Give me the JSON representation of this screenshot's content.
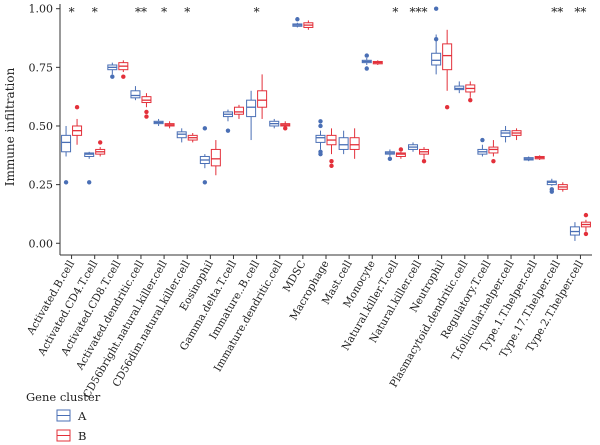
{
  "chart_data": {
    "type": "box",
    "ylabel": "Immune infiltration",
    "ylim": [
      -0.05,
      1.02
    ],
    "yticks": [
      0.0,
      0.25,
      0.5,
      0.75,
      1.0
    ],
    "ytick_labels": [
      "0.00",
      "0.25",
      "0.50",
      "0.75",
      "1.00"
    ],
    "categories": [
      "Activated.B.cell",
      "Activated.CD4.T.cell",
      "Activated.CD8.T.cell",
      "Activated.dendritic.cell",
      "CD56bright.natural.killer.cell",
      "CD56dim.natural.killer.cell",
      "Eosinophil",
      "Gamma.delta.T.cell",
      "Immature..B.cell",
      "Immature.dendritic.cell",
      "MDSC",
      "Macrophage",
      "Mast.cell",
      "Monocyte",
      "Natural.killer.T.cell",
      "Natural.killer.cell",
      "Neutrophil",
      "Plasmacytoid.dendritic.cell",
      "Regulatory.T.cell",
      "T.follicular.helper.cell",
      "Type.1.T.helper.cell",
      "Type.17.T.helper.cell",
      "Type.2.T.helper.cell"
    ],
    "significance": [
      "*",
      "*",
      "",
      "**",
      "*",
      "*",
      "",
      "",
      "*",
      "",
      "",
      "",
      "",
      "",
      "*",
      "***",
      "",
      "",
      "",
      "",
      "",
      "**",
      "**"
    ],
    "legend": {
      "title": "Gene cluster",
      "placement": "bottom-left"
    },
    "series": [
      {
        "name": "A",
        "color": "#4a6fb5",
        "boxes": [
          {
            "min": 0.37,
            "q1": 0.39,
            "median": 0.43,
            "q3": 0.46,
            "max": 0.5,
            "outliers": [
              0.26
            ]
          },
          {
            "min": 0.36,
            "q1": 0.37,
            "median": 0.38,
            "q3": 0.385,
            "max": 0.39,
            "outliers": [
              0.26
            ]
          },
          {
            "min": 0.72,
            "q1": 0.74,
            "median": 0.75,
            "q3": 0.76,
            "max": 0.77,
            "outliers": [
              0.71
            ]
          },
          {
            "min": 0.61,
            "q1": 0.62,
            "median": 0.63,
            "q3": 0.65,
            "max": 0.67,
            "outliers": []
          },
          {
            "min": 0.5,
            "q1": 0.51,
            "median": 0.515,
            "q3": 0.52,
            "max": 0.53,
            "outliers": []
          },
          {
            "min": 0.43,
            "q1": 0.45,
            "median": 0.465,
            "q3": 0.475,
            "max": 0.49,
            "outliers": []
          },
          {
            "min": 0.32,
            "q1": 0.34,
            "median": 0.355,
            "q3": 0.37,
            "max": 0.38,
            "outliers": [
              0.49,
              0.26
            ]
          },
          {
            "min": 0.52,
            "q1": 0.54,
            "median": 0.55,
            "q3": 0.56,
            "max": 0.57,
            "outliers": [
              0.48
            ]
          },
          {
            "min": 0.44,
            "q1": 0.54,
            "median": 0.58,
            "q3": 0.61,
            "max": 0.65,
            "outliers": []
          },
          {
            "min": 0.49,
            "q1": 0.5,
            "median": 0.51,
            "q3": 0.52,
            "max": 0.53,
            "outliers": []
          },
          {
            "min": 0.92,
            "q1": 0.925,
            "median": 0.93,
            "q3": 0.935,
            "max": 0.94,
            "outliers": [
              0.955
            ]
          },
          {
            "min": 0.4,
            "q1": 0.43,
            "median": 0.45,
            "q3": 0.46,
            "max": 0.48,
            "outliers": [
              0.5,
              0.52,
              0.39,
              0.38
            ]
          },
          {
            "min": 0.38,
            "q1": 0.4,
            "median": 0.42,
            "q3": 0.45,
            "max": 0.48,
            "outliers": []
          },
          {
            "min": 0.76,
            "q1": 0.77,
            "median": 0.775,
            "q3": 0.78,
            "max": 0.79,
            "outliers": [
              0.8,
              0.745
            ]
          },
          {
            "min": 0.37,
            "q1": 0.38,
            "median": 0.385,
            "q3": 0.39,
            "max": 0.4,
            "outliers": [
              0.36
            ]
          },
          {
            "min": 0.39,
            "q1": 0.4,
            "median": 0.41,
            "q3": 0.42,
            "max": 0.43,
            "outliers": []
          },
          {
            "min": 0.72,
            "q1": 0.76,
            "median": 0.78,
            "q3": 0.81,
            "max": 0.89,
            "outliers": [
              1.0,
              0.87
            ]
          },
          {
            "min": 0.64,
            "q1": 0.655,
            "median": 0.66,
            "q3": 0.67,
            "max": 0.69,
            "outliers": []
          },
          {
            "min": 0.37,
            "q1": 0.38,
            "median": 0.39,
            "q3": 0.4,
            "max": 0.42,
            "outliers": [
              0.44
            ]
          },
          {
            "min": 0.43,
            "q1": 0.455,
            "median": 0.47,
            "q3": 0.48,
            "max": 0.5,
            "outliers": []
          },
          {
            "min": 0.35,
            "q1": 0.355,
            "median": 0.36,
            "q3": 0.365,
            "max": 0.37,
            "outliers": []
          },
          {
            "min": 0.245,
            "q1": 0.25,
            "median": 0.26,
            "q3": 0.265,
            "max": 0.275,
            "outliers": [
              0.23,
              0.22
            ]
          },
          {
            "min": 0.01,
            "q1": 0.035,
            "median": 0.05,
            "q3": 0.07,
            "max": 0.09,
            "outliers": []
          }
        ]
      },
      {
        "name": "B",
        "color": "#e3303a",
        "boxes": [
          {
            "min": 0.42,
            "q1": 0.46,
            "median": 0.48,
            "q3": 0.5,
            "max": 0.53,
            "outliers": [
              0.58
            ]
          },
          {
            "min": 0.37,
            "q1": 0.38,
            "median": 0.39,
            "q3": 0.4,
            "max": 0.41,
            "outliers": [
              0.43
            ]
          },
          {
            "min": 0.73,
            "q1": 0.74,
            "median": 0.755,
            "q3": 0.77,
            "max": 0.78,
            "outliers": [
              0.71
            ]
          },
          {
            "min": 0.58,
            "q1": 0.6,
            "median": 0.61,
            "q3": 0.625,
            "max": 0.64,
            "outliers": [
              0.56,
              0.54
            ]
          },
          {
            "min": 0.49,
            "q1": 0.5,
            "median": 0.505,
            "q3": 0.51,
            "max": 0.52,
            "outliers": []
          },
          {
            "min": 0.43,
            "q1": 0.44,
            "median": 0.45,
            "q3": 0.46,
            "max": 0.47,
            "outliers": []
          },
          {
            "min": 0.29,
            "q1": 0.33,
            "median": 0.36,
            "q3": 0.4,
            "max": 0.44,
            "outliers": []
          },
          {
            "min": 0.53,
            "q1": 0.55,
            "median": 0.56,
            "q3": 0.58,
            "max": 0.59,
            "outliers": []
          },
          {
            "min": 0.53,
            "q1": 0.58,
            "median": 0.61,
            "q3": 0.65,
            "max": 0.72,
            "outliers": []
          },
          {
            "min": 0.49,
            "q1": 0.5,
            "median": 0.505,
            "q3": 0.51,
            "max": 0.52,
            "outliers": [
              0.49
            ]
          },
          {
            "min": 0.91,
            "q1": 0.92,
            "median": 0.93,
            "q3": 0.94,
            "max": 0.95,
            "outliers": []
          },
          {
            "min": 0.38,
            "q1": 0.42,
            "median": 0.44,
            "q3": 0.46,
            "max": 0.49,
            "outliers": [
              0.35,
              0.33
            ]
          },
          {
            "min": 0.36,
            "q1": 0.4,
            "median": 0.42,
            "q3": 0.45,
            "max": 0.49,
            "outliers": []
          },
          {
            "min": 0.76,
            "q1": 0.765,
            "median": 0.77,
            "q3": 0.775,
            "max": 0.78,
            "outliers": []
          },
          {
            "min": 0.36,
            "q1": 0.37,
            "median": 0.38,
            "q3": 0.385,
            "max": 0.39,
            "outliers": [
              0.4
            ]
          },
          {
            "min": 0.36,
            "q1": 0.38,
            "median": 0.39,
            "q3": 0.4,
            "max": 0.41,
            "outliers": [
              0.35
            ]
          },
          {
            "min": 0.65,
            "q1": 0.74,
            "median": 0.8,
            "q3": 0.85,
            "max": 0.91,
            "outliers": [
              0.58
            ]
          },
          {
            "min": 0.62,
            "q1": 0.645,
            "median": 0.66,
            "q3": 0.675,
            "max": 0.69,
            "outliers": [
              0.61
            ]
          },
          {
            "min": 0.37,
            "q1": 0.385,
            "median": 0.4,
            "q3": 0.41,
            "max": 0.44,
            "outliers": [
              0.35
            ]
          },
          {
            "min": 0.44,
            "q1": 0.46,
            "median": 0.47,
            "q3": 0.48,
            "max": 0.49,
            "outliers": []
          },
          {
            "min": 0.355,
            "q1": 0.36,
            "median": 0.365,
            "q3": 0.37,
            "max": 0.375,
            "outliers": []
          },
          {
            "min": 0.22,
            "q1": 0.23,
            "median": 0.24,
            "q3": 0.25,
            "max": 0.26,
            "outliers": []
          },
          {
            "min": 0.05,
            "q1": 0.07,
            "median": 0.08,
            "q3": 0.09,
            "max": 0.1,
            "outliers": [
              0.12,
              0.04
            ]
          }
        ]
      }
    ]
  }
}
